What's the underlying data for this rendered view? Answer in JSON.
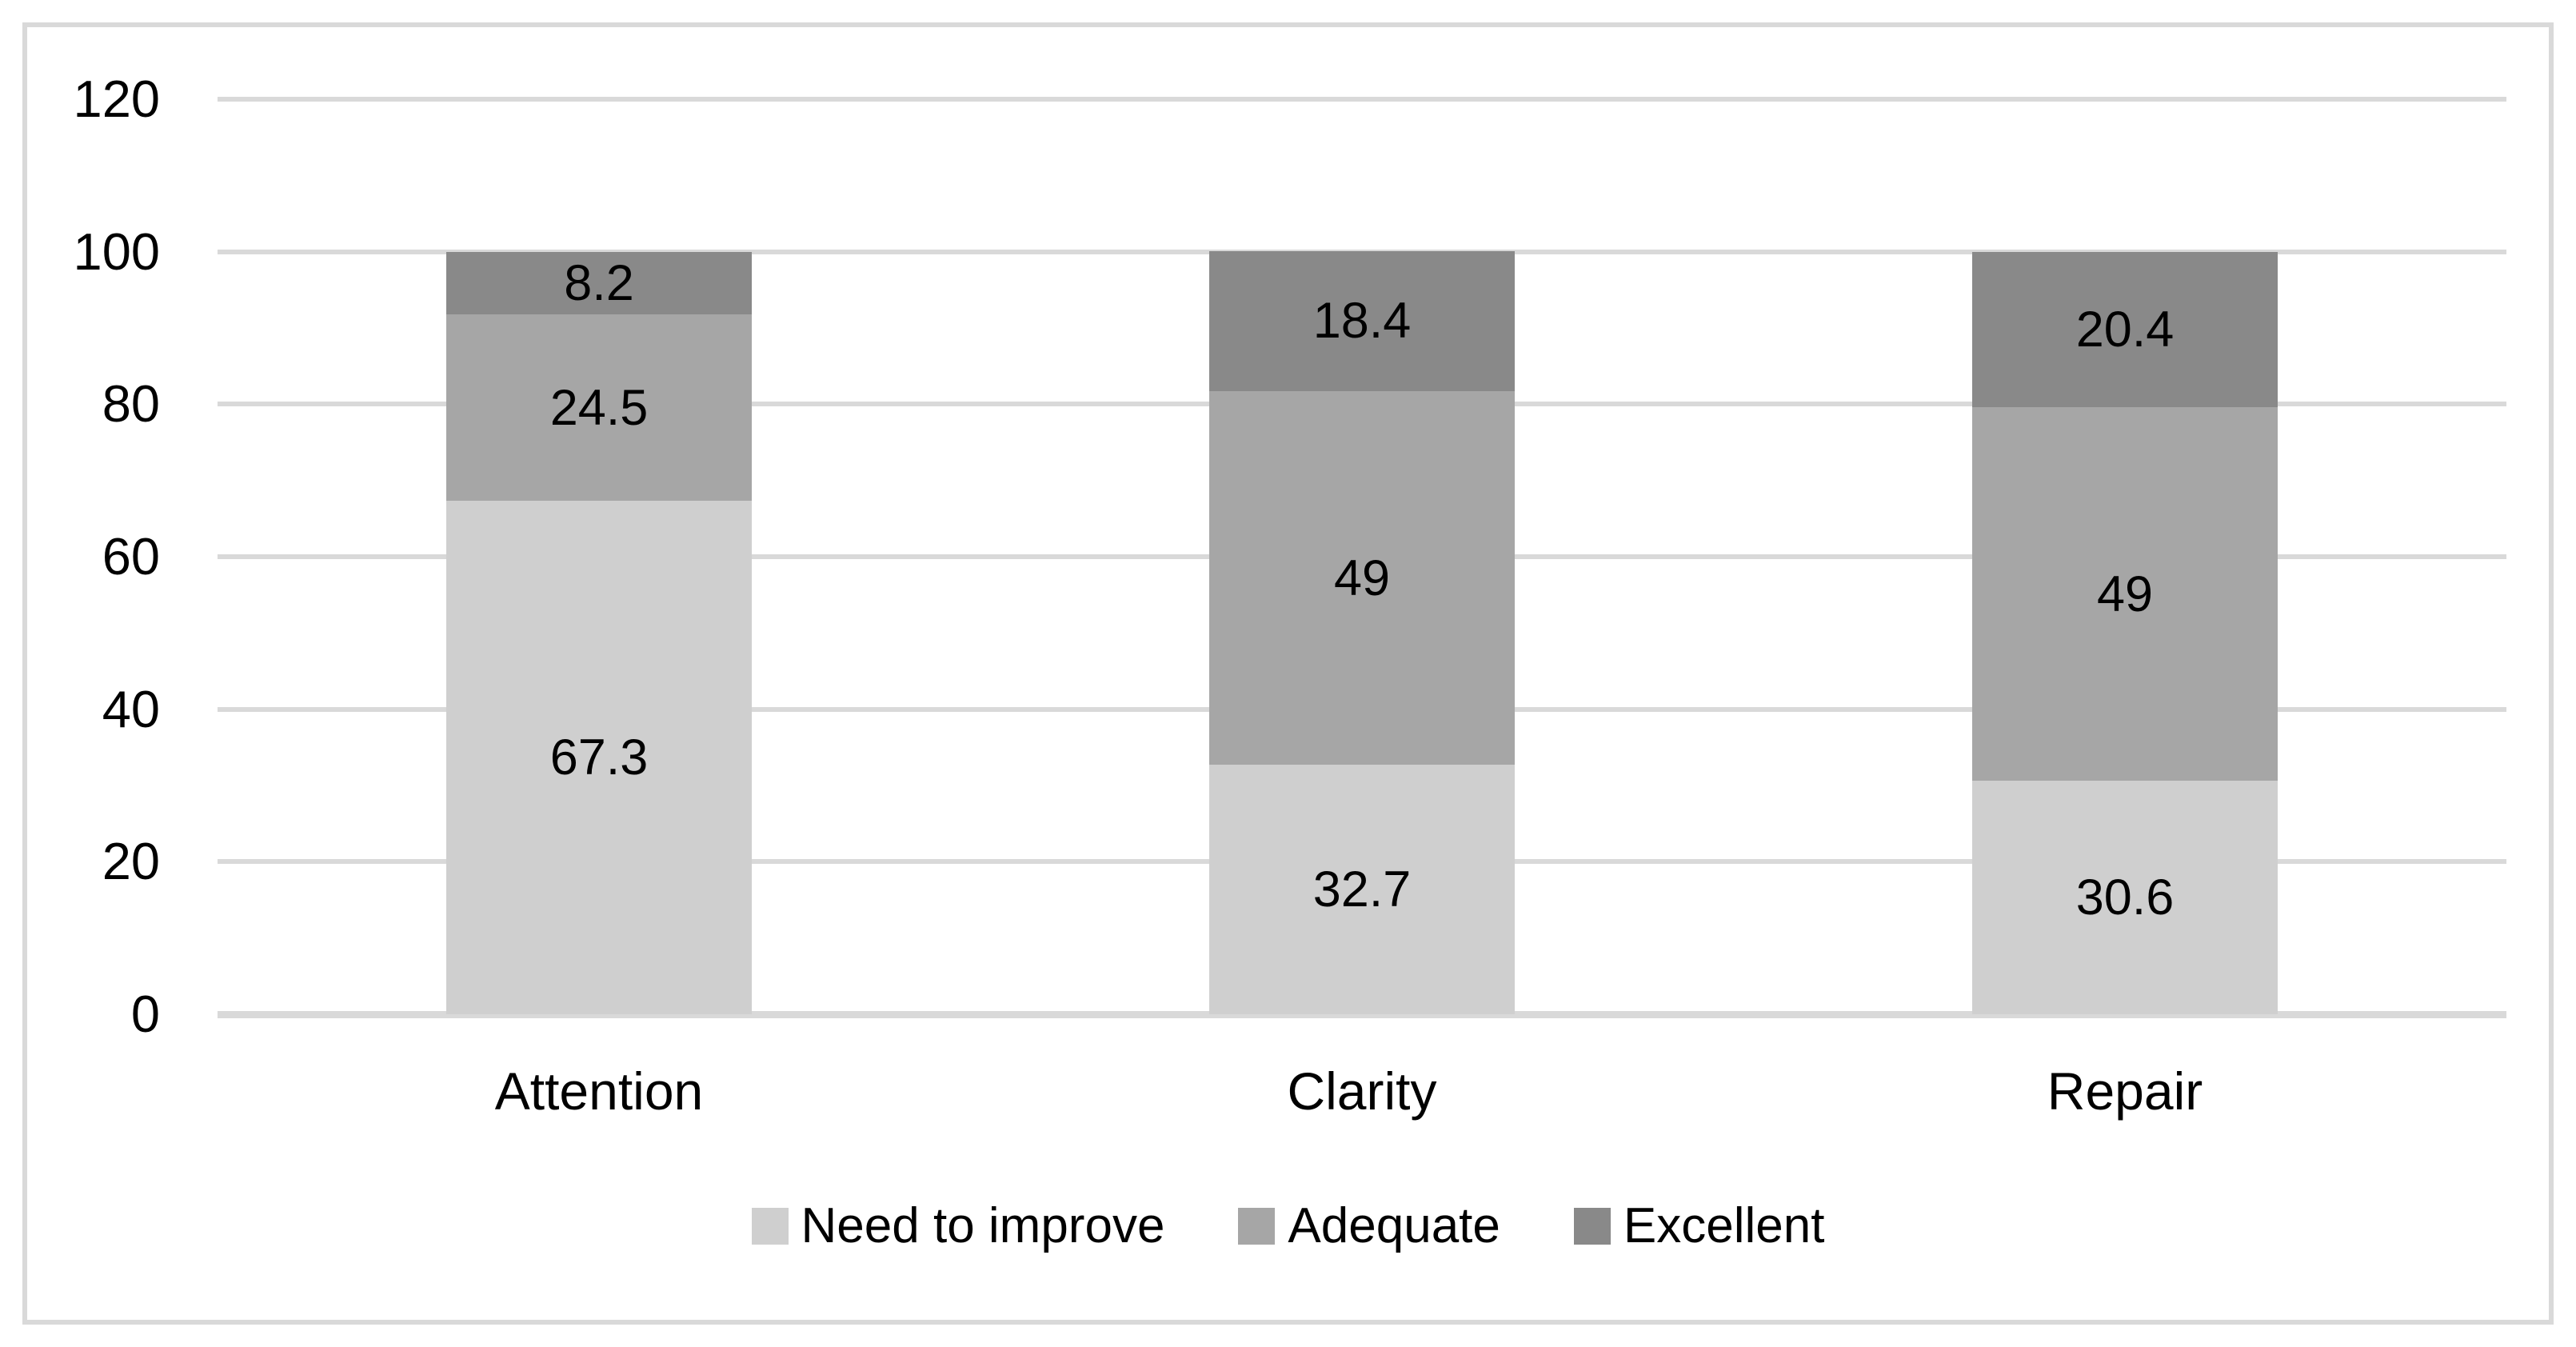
{
  "chart_data": {
    "type": "bar",
    "stacked": true,
    "title": "",
    "xlabel": "",
    "ylabel": "",
    "categories": [
      "Attention",
      "Clarity",
      "Repair"
    ],
    "series": [
      {
        "name": "Need to improve",
        "color": "#cfcfcf",
        "values": [
          67.3,
          32.7,
          30.6
        ]
      },
      {
        "name": "Adequate",
        "color": "#a6a6a6",
        "values": [
          24.5,
          49,
          49
        ]
      },
      {
        "name": "Excellent",
        "color": "#898989",
        "values": [
          8.2,
          18.4,
          20.4
        ]
      }
    ],
    "data_labels": [
      [
        "67.3",
        "32.7",
        "30.6"
      ],
      [
        "24.5",
        "49",
        "49"
      ],
      [
        "8.2",
        "18.4",
        "20.4"
      ]
    ],
    "ylim": [
      0,
      120
    ],
    "yticks": [
      0,
      20,
      40,
      60,
      80,
      100,
      120
    ],
    "grid": true,
    "legend_position": "bottom"
  },
  "style": {
    "grid_color": "#d9d9d9",
    "border_color": "#d9d9d9",
    "text_color": "#000000",
    "background": "#ffffff"
  }
}
